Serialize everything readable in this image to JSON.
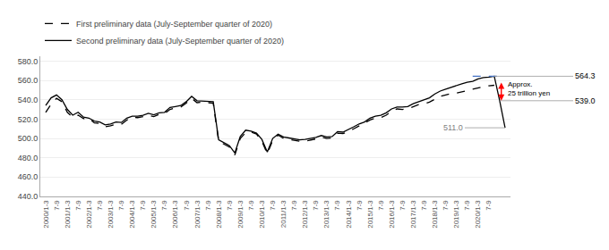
{
  "chart_data": {
    "type": "line",
    "categories": [
      "2000/1-3",
      null,
      "7-9",
      null,
      "2001/1-3",
      null,
      "7-9",
      null,
      "2002/1-3",
      null,
      "7-9",
      null,
      "2003/1-3",
      null,
      "7-9",
      null,
      "2004/1-3",
      null,
      "7-9",
      null,
      "2005/1-3",
      null,
      "7-9",
      null,
      "2006/1-3",
      null,
      "7-9",
      null,
      "2007/1-3",
      null,
      "7-9",
      null,
      "2008/1-3",
      null,
      "7-9",
      null,
      "2009/1-3",
      null,
      "7-9",
      null,
      "2010/1-3",
      null,
      "7-9",
      null,
      "2011/1-3",
      null,
      "7-9",
      null,
      "2012/1-3",
      null,
      "7-9",
      null,
      "2013/1-3",
      null,
      "7-9",
      null,
      "2014/1-3",
      null,
      "7-9",
      null,
      "2015/1-3",
      null,
      "7-9",
      null,
      "2016/1-3",
      null,
      "7-9",
      null,
      "2017/1-3",
      null,
      "7-9",
      null,
      "2018/1-3",
      null,
      "7-9",
      null,
      "2019/1-3",
      null,
      "7-9",
      null,
      "2020/1-3",
      null,
      "7-9",
      null,
      null,
      null
    ],
    "series": [
      {
        "name": "First preliminary data (July-September quarter of 2020)",
        "color": "#000000",
        "line_style": "dashed",
        "values": [
          527.0,
          535.5,
          541.5,
          538.0,
          527.0,
          522.0,
          524.0,
          520.5,
          521.0,
          516.0,
          515.5,
          512.0,
          513.0,
          515.0,
          514.5,
          519.0,
          522.0,
          521.5,
          522.5,
          524.0,
          522.5,
          525.0,
          525.5,
          530.0,
          531.5,
          532.5,
          536.5,
          541.5,
          537.0,
          537.5,
          537.0,
          536.5,
          497.0,
          494.0,
          491.0,
          483.0,
          500.0,
          506.0,
          506.5,
          504.5,
          497.0,
          484.0,
          498.0,
          503.5,
          500.0,
          499.0,
          498.0,
          497.0,
          497.0,
          498.0,
          499.5,
          501.5,
          500.0,
          500.5,
          505.5,
          505.0,
          507.0,
          510.0,
          513.0,
          515.5,
          519.0,
          521.0,
          521.5,
          524.0,
          528.0,
          530.5,
          530.0,
          530.5,
          533.0,
          535.0,
          536.0,
          537.5,
          540.5,
          543.5,
          545.0,
          546.5,
          547.0,
          548.0,
          549.5,
          551.0,
          552.5,
          553.5,
          554.5,
          555.0,
          null,
          null
        ]
      },
      {
        "name": "Second preliminary data (July-September quarter of 2020)",
        "color": "#000000",
        "line_style": "solid",
        "values": [
          534.0,
          542.0,
          545.0,
          540.0,
          530.0,
          524.0,
          527.0,
          522.0,
          521.0,
          518.0,
          517.0,
          514.0,
          515.0,
          517.0,
          516.5,
          521.0,
          523.0,
          523.0,
          524.0,
          526.0,
          524.5,
          526.5,
          527.0,
          532.0,
          533.0,
          534.0,
          538.0,
          543.5,
          539.0,
          538.5,
          538.5,
          538.0,
          498.5,
          495.5,
          492.5,
          485.0,
          502.0,
          508.5,
          507.5,
          505.5,
          499.0,
          486.0,
          500.0,
          504.5,
          501.5,
          500.5,
          499.5,
          498.5,
          499.0,
          500.0,
          501.0,
          503.0,
          501.5,
          502.0,
          507.0,
          506.5,
          509.0,
          512.0,
          515.0,
          517.0,
          521.0,
          523.0,
          524.0,
          526.5,
          530.5,
          532.5,
          532.5,
          533.0,
          536.0,
          538.0,
          540.0,
          542.0,
          546.0,
          549.0,
          551.0,
          553.0,
          554.5,
          556.5,
          558.0,
          559.0,
          561.5,
          563.0,
          563.5,
          564.3,
          539.0,
          511.0
        ]
      }
    ],
    "xlim": [
      -1,
      86
    ],
    "ylim": [
      440.0,
      585.0
    ],
    "yticks": [
      {
        "value": 440.0,
        "label": "440.0"
      },
      {
        "value": 460.0,
        "label": "460.0"
      },
      {
        "value": 480.0,
        "label": "480.0"
      },
      {
        "value": 500.0,
        "label": "500.0"
      },
      {
        "value": 520.0,
        "label": "520.0"
      },
      {
        "value": 540.0,
        "label": "540.0"
      },
      {
        "value": 560.0,
        "label": "560.0"
      },
      {
        "value": 580.0,
        "label": "580.0"
      }
    ],
    "grid": true,
    "legend": "upper left",
    "annotations": [
      {
        "text": "564.3",
        "x": 83,
        "y": 564.3,
        "color": "#000000"
      },
      {
        "text": "539.0",
        "x": 84,
        "y": 539.0,
        "color": "#000000"
      },
      {
        "text": "511.0",
        "x": 85,
        "y": 511.0,
        "color": "#808080"
      },
      {
        "text": [
          "Approx.",
          "25 trillion yen"
        ],
        "x": 85.2,
        "y": 551.5,
        "color": "#000000"
      }
    ],
    "reference_line": {
      "y": 564.3,
      "x": [
        79,
        84
      ],
      "color": "#4472c4",
      "line_style": "dashed"
    },
    "range_arrow": {
      "x": 84.3,
      "y": [
        539.0,
        564.3
      ],
      "color": "#ff0000"
    }
  }
}
